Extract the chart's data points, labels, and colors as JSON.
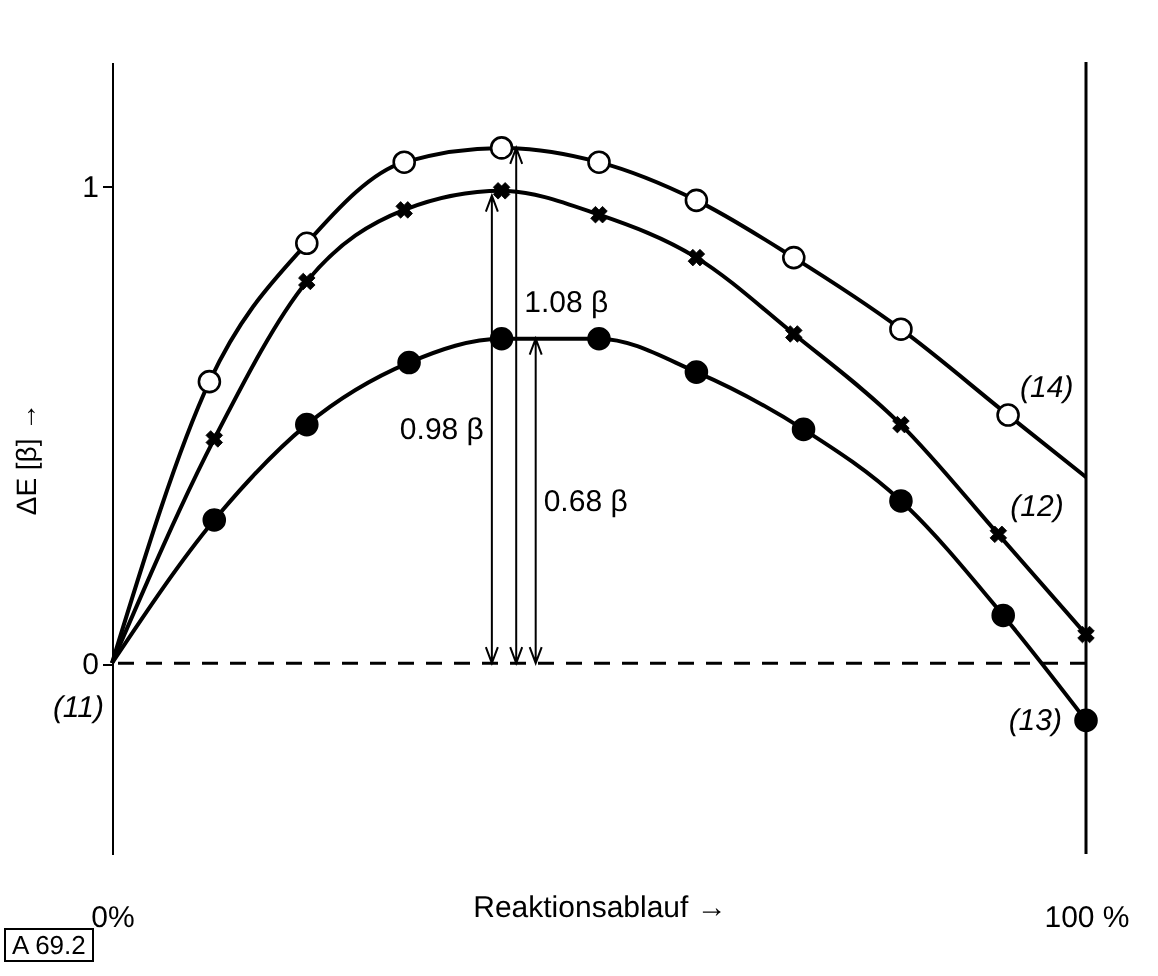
{
  "chart_data": {
    "type": "line",
    "xlabel": "Reaktionsablauf →",
    "ylabel": "ΔE [β] →",
    "xlim": [
      0,
      100
    ],
    "ylim": [
      -0.4,
      1.26
    ],
    "xticks": [
      {
        "value": 0,
        "label": "0%"
      },
      {
        "value": 100,
        "label": "100 %"
      }
    ],
    "yticks": [
      0,
      1
    ],
    "series": [
      {
        "name": "(14)",
        "type": "line",
        "color": "#000000",
        "x": [
          0,
          10,
          20,
          30,
          40,
          50,
          60,
          70,
          81,
          92,
          100
        ],
        "values": [
          0,
          0.59,
          0.88,
          1.05,
          1.08,
          1.05,
          0.97,
          0.85,
          0.7,
          0.52,
          0.39
        ]
      },
      {
        "name": "(12)",
        "type": "line",
        "color": "#000000",
        "x": [
          0,
          10.5,
          20,
          30,
          40,
          50,
          60,
          70,
          81,
          91,
          100
        ],
        "values": [
          0,
          0.47,
          0.8,
          0.95,
          0.99,
          0.94,
          0.85,
          0.69,
          0.5,
          0.27,
          0.06
        ]
      },
      {
        "name": "(13)",
        "type": "line",
        "color": "#000000",
        "x": [
          0,
          10.5,
          20,
          30.5,
          40,
          50,
          60,
          71,
          81,
          91.5,
          100
        ],
        "values": [
          0,
          0.3,
          0.5,
          0.63,
          0.68,
          0.68,
          0.61,
          0.49,
          0.34,
          0.1,
          -0.12
        ]
      },
      {
        "type": "scatter",
        "marker": "circle",
        "color": "#ffffff",
        "x": [
          10,
          20,
          30,
          40,
          50,
          60,
          70,
          81,
          92
        ],
        "values": [
          0.59,
          0.88,
          1.05,
          1.08,
          1.05,
          0.97,
          0.85,
          0.7,
          0.52
        ]
      },
      {
        "type": "scatter",
        "marker": "cross",
        "color": "#000000",
        "x": [
          10.5,
          20,
          30,
          40,
          50,
          60,
          70,
          81,
          91,
          100
        ],
        "values": [
          0.47,
          0.8,
          0.95,
          0.99,
          0.94,
          0.85,
          0.69,
          0.5,
          0.27,
          0.06
        ]
      },
      {
        "type": "scatter",
        "marker": "circle",
        "color": "#000000",
        "x": [
          10.5,
          20,
          30.5,
          40,
          50,
          60,
          71,
          81,
          91.5,
          100
        ],
        "values": [
          0.3,
          0.5,
          0.63,
          0.68,
          0.68,
          0.61,
          0.49,
          0.34,
          0.1,
          -0.12
        ]
      }
    ],
    "ref_lines": [
      {
        "axis": "y",
        "value": 0,
        "line_style": "dashed"
      },
      {
        "axis": "x",
        "value": 100
      }
    ],
    "annotations": [
      {
        "text": "0.98 β",
        "x": 39,
        "y": 0.98
      },
      {
        "text": "1.08 β",
        "x": 41.5,
        "y": 1.08
      },
      {
        "text": "0.68 β",
        "x": 43.5,
        "y": 0.68
      },
      {
        "text": "(11)",
        "x": 0,
        "y": 0
      },
      "A 69.2"
    ]
  }
}
